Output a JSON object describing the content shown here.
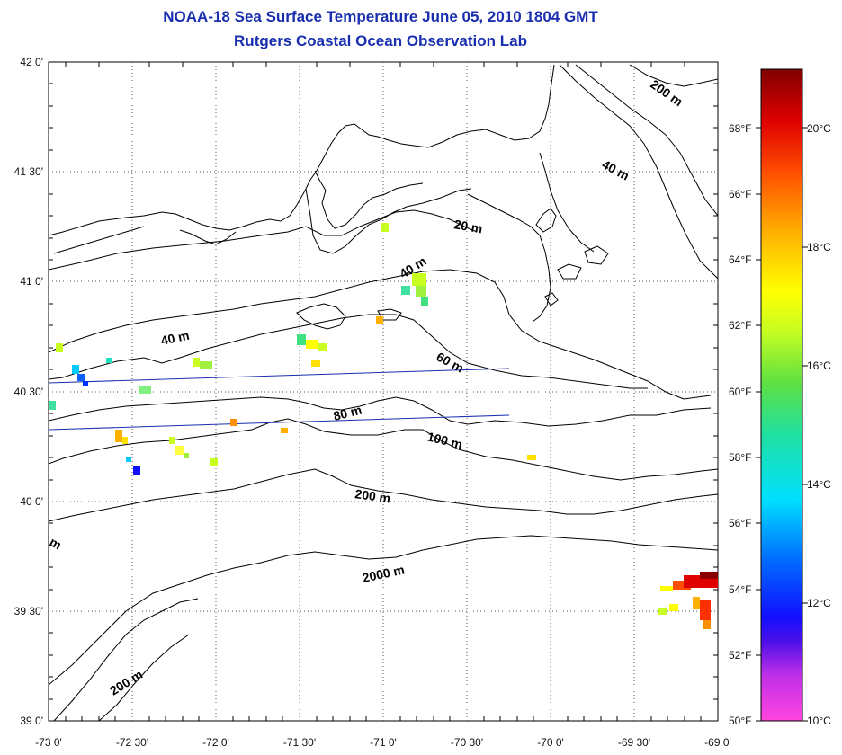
{
  "header": {
    "title": "NOAA-18 Sea Surface Temperature June 05, 2010 1804 GMT",
    "subtitle": "Rutgers Coastal Ocean Observation Lab"
  },
  "map": {
    "lon_range": [
      -73.0,
      -69.0
    ],
    "lat_range": [
      39.0,
      42.0
    ],
    "grid": "dotted",
    "lon_ticks": [
      "-73 0'",
      "-72 30'",
      "-72 0'",
      "-71 30'",
      "-71 0'",
      "-70 30'",
      "-70 0'",
      "-69 30'",
      "-69 0'"
    ],
    "lat_ticks": [
      "39 0'",
      "39 30'",
      "40 0'",
      "40 30'",
      "41 0'",
      "41 30'",
      "42 0'"
    ],
    "isobath_labels": [
      "200 m",
      "40 m",
      "20 m",
      "40 m",
      "40 m",
      "60 m",
      "80 m",
      "100 m",
      "200 m",
      "2000 m",
      "200 m",
      "m"
    ],
    "colors": {
      "land_outline": "#000000",
      "track_lines": "#1a2fb0",
      "title": "#1a2fb0"
    }
  },
  "colorbar": {
    "fahrenheit_labels": [
      "68°F",
      "66°F",
      "64°F",
      "62°F",
      "60°F",
      "58°F",
      "56°F",
      "54°F",
      "52°F",
      "50°F"
    ],
    "celsius_labels": [
      "20°C",
      "18°C",
      "16°C",
      "14°C",
      "12°C",
      "10°C"
    ],
    "range_c": [
      10,
      21
    ],
    "palette": [
      "#ff44dd",
      "#8020e0",
      "#1010ff",
      "#00ccff",
      "#20e0c0",
      "#40e040",
      "#c8ff20",
      "#ffff00",
      "#ffb000",
      "#ff5000",
      "#e00000",
      "#8a0000"
    ]
  }
}
